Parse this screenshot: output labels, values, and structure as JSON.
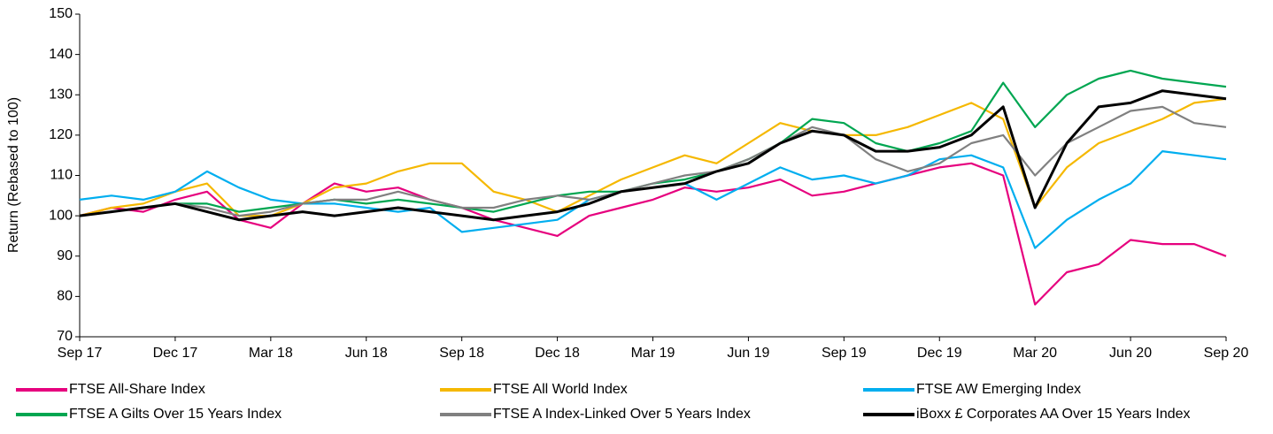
{
  "chart_data": {
    "type": "line",
    "y_label": "Return (Rebased to 100)",
    "categories": [
      "Sep 17",
      null,
      null,
      "Dec 17",
      null,
      null,
      "Mar 18",
      null,
      null,
      "Jun 18",
      null,
      null,
      "Sep 18",
      null,
      null,
      "Dec 18",
      null,
      null,
      "Mar 19",
      null,
      null,
      "Jun 19",
      null,
      null,
      "Sep 19",
      null,
      null,
      "Dec 19",
      null,
      null,
      "Mar 20",
      null,
      null,
      "Jun 20",
      null,
      null,
      "Sep 20"
    ],
    "ylim": [
      70,
      150
    ],
    "yticks": [
      70,
      80,
      90,
      100,
      110,
      120,
      130,
      140,
      150
    ],
    "grid": false,
    "series": [
      {
        "name": "FTSE All-Share Index",
        "color": "#e6007e",
        "values": [
          100,
          102,
          101,
          104,
          106,
          99,
          97,
          103,
          108,
          106,
          107,
          104,
          102,
          99,
          97,
          95,
          100,
          102,
          104,
          107,
          106,
          107,
          109,
          105,
          106,
          108,
          110,
          112,
          113,
          110,
          78,
          86,
          88,
          94,
          93,
          93,
          90
        ]
      },
      {
        "name": "FTSE All World Index",
        "color": "#f5b800",
        "values": [
          100,
          102,
          103,
          106,
          108,
          100,
          100,
          103,
          107,
          108,
          111,
          113,
          113,
          106,
          104,
          101,
          105,
          109,
          112,
          115,
          113,
          118,
          123,
          121,
          120,
          120,
          122,
          125,
          128,
          124,
          102,
          112,
          118,
          121,
          124,
          128,
          129
        ]
      },
      {
        "name": "FTSE AW Emerging Index",
        "color": "#00aeef",
        "values": [
          104,
          105,
          104,
          106,
          111,
          107,
          104,
          103,
          103,
          102,
          101,
          102,
          96,
          97,
          98,
          99,
          104,
          106,
          107,
          108,
          104,
          108,
          112,
          109,
          110,
          108,
          110,
          114,
          115,
          112,
          92,
          99,
          104,
          108,
          116,
          115,
          114
        ]
      },
      {
        "name": "FTSE A Gilts Over 15 Years Index",
        "color": "#00a651",
        "values": [
          100,
          101,
          102,
          103,
          103,
          101,
          102,
          103,
          104,
          103,
          104,
          103,
          102,
          101,
          103,
          105,
          106,
          106,
          108,
          109,
          111,
          114,
          118,
          124,
          123,
          118,
          116,
          118,
          121,
          133,
          122,
          130,
          134,
          136,
          134,
          133,
          132
        ]
      },
      {
        "name": "FTSE A Index-Linked Over 5 Years Index",
        "color": "#808080",
        "values": [
          100,
          101,
          102,
          103,
          102,
          100,
          101,
          103,
          104,
          104,
          106,
          104,
          102,
          102,
          104,
          105,
          104,
          106,
          108,
          110,
          111,
          114,
          118,
          122,
          120,
          114,
          111,
          113,
          118,
          120,
          110,
          118,
          122,
          126,
          127,
          123,
          122
        ]
      },
      {
        "name": "iBoxx £ Corporates AA Over 15 Years Index",
        "color": "#000000",
        "values": [
          100,
          101,
          102,
          103,
          101,
          99,
          100,
          101,
          100,
          101,
          102,
          101,
          100,
          99,
          100,
          101,
          103,
          106,
          107,
          108,
          111,
          113,
          118,
          121,
          120,
          116,
          116,
          117,
          120,
          127,
          102,
          118,
          127,
          128,
          131,
          130,
          129
        ]
      }
    ]
  }
}
